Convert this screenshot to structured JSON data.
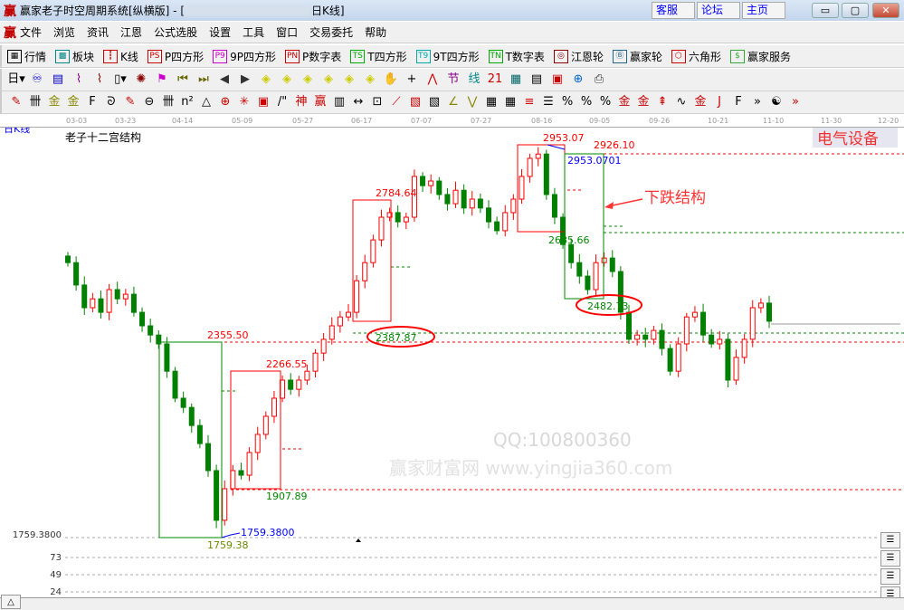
{
  "titlebar": {
    "logo": "赢",
    "title": "赢家老子时空周期系统[纵横版] - [",
    "title_suffix": "日K线]",
    "links": [
      "客服",
      "论坛",
      "主页"
    ],
    "minimize": "▭",
    "maximize": "▢",
    "close": "✕"
  },
  "menu": {
    "logo": "赢",
    "items": [
      "文件",
      "浏览",
      "资讯",
      "江恩",
      "公式选股",
      "设置",
      "工具",
      "窗口",
      "交易委托",
      "帮助"
    ],
    "mdi": [
      "_",
      "❐",
      "✕"
    ]
  },
  "toolbar1": [
    {
      "icon": "quote-table-icon",
      "glyph": "▦",
      "label": "行情",
      "color": "#000"
    },
    {
      "icon": "sector-icon",
      "glyph": "▩",
      "label": "板块",
      "color": "#088"
    },
    {
      "icon": "kline-icon",
      "glyph": "┇",
      "label": "K线",
      "color": "#c00"
    },
    {
      "icon": "ps-icon",
      "glyph": "PS",
      "label": "P四方形",
      "color": "#c00"
    },
    {
      "icon": "p9-icon",
      "glyph": "P9",
      "label": "9P四方形",
      "color": "#c0c"
    },
    {
      "icon": "pn-icon",
      "glyph": "PN",
      "label": "P数字表",
      "color": "#c00"
    },
    {
      "icon": "ts-icon",
      "glyph": "TS",
      "label": "T四方形",
      "color": "#0a0"
    },
    {
      "icon": "t9-icon",
      "glyph": "T9",
      "label": "9T四方形",
      "color": "#0aa"
    },
    {
      "icon": "tn-icon",
      "glyph": "TN",
      "label": "T数字表",
      "color": "#0a0"
    },
    {
      "icon": "gann-wheel-icon",
      "glyph": "◎",
      "label": "江恩轮",
      "color": "#800"
    },
    {
      "icon": "winner-wheel-icon",
      "glyph": "Ⓑ",
      "label": "赢家轮",
      "color": "#268"
    },
    {
      "icon": "hexagon-icon",
      "glyph": "⬡",
      "label": "六角形",
      "color": "#c00"
    },
    {
      "icon": "dollar-icon",
      "glyph": "$",
      "label": "赢家服务",
      "color": "#3a3"
    }
  ],
  "toolbar2": [
    {
      "icon": "period-day-icon",
      "glyph": "日▾",
      "color": "#000"
    },
    {
      "icon": "stock-icon",
      "glyph": "♾",
      "color": "#00c"
    },
    {
      "icon": "notes-icon",
      "glyph": "▤",
      "color": "#00c"
    },
    {
      "icon": "wave3-icon",
      "glyph": "⌇",
      "color": "#808"
    },
    {
      "icon": "wave9-icon",
      "glyph": "⌇",
      "color": "#800"
    },
    {
      "icon": "candle-type-icon",
      "glyph": "▯▾",
      "color": "#000"
    },
    {
      "icon": "chart-style-icon",
      "glyph": "✺",
      "color": "#800"
    },
    {
      "icon": "flag-icon",
      "glyph": "⚑",
      "color": "#c0c"
    },
    {
      "icon": "first-icon",
      "glyph": "⏮",
      "color": "#660"
    },
    {
      "icon": "last-icon",
      "glyph": "⏭",
      "color": "#660"
    },
    {
      "icon": "prev-icon",
      "glyph": "◀",
      "color": "#333"
    },
    {
      "icon": "next-icon",
      "glyph": "▶",
      "color": "#333"
    },
    {
      "icon": "shift-left-icon",
      "glyph": "◈",
      "color": "#cc0"
    },
    {
      "icon": "shift-right-icon",
      "glyph": "◈",
      "color": "#cc0"
    },
    {
      "icon": "expand-h-icon",
      "glyph": "◈",
      "color": "#cc0"
    },
    {
      "icon": "shrink-h-icon",
      "glyph": "◈",
      "color": "#cc0"
    },
    {
      "icon": "zoom-in-icon",
      "glyph": "◈",
      "color": "#cc0"
    },
    {
      "icon": "zoom-out-icon",
      "glyph": "◈",
      "color": "#cc0"
    },
    {
      "icon": "hand-icon",
      "glyph": "✋",
      "color": "#000"
    },
    {
      "icon": "crosshair-icon",
      "glyph": "+",
      "color": "#000"
    },
    {
      "icon": "line-icon",
      "glyph": "⋀",
      "color": "#c00"
    },
    {
      "icon": "festival-icon",
      "glyph": "节",
      "color": "#808"
    },
    {
      "icon": "grid-icon",
      "glyph": "线",
      "color": "#088"
    },
    {
      "icon": "calendar-icon",
      "glyph": "21",
      "color": "#c00"
    },
    {
      "icon": "calculator-icon",
      "glyph": "▦",
      "color": "#066"
    },
    {
      "icon": "document-icon",
      "glyph": "▤",
      "color": "#000"
    },
    {
      "icon": "save-icon",
      "glyph": "▣",
      "color": "#c00"
    },
    {
      "icon": "network-icon",
      "glyph": "⊕",
      "color": "#06c"
    },
    {
      "icon": "print-icon",
      "glyph": "⎙",
      "color": "#333"
    }
  ],
  "toolbar3": [
    {
      "icon": "pen-icon",
      "glyph": "✎"
    },
    {
      "icon": "lines-icon",
      "glyph": "卌"
    },
    {
      "icon": "gold-1-icon",
      "glyph": "金"
    },
    {
      "icon": "gold-2-icon",
      "glyph": "金"
    },
    {
      "icon": "fib-icon",
      "glyph": "F"
    },
    {
      "icon": "spiral-icon",
      "glyph": "ᘐ"
    },
    {
      "icon": "pencil-icon",
      "glyph": "✎"
    },
    {
      "icon": "circle-ruler-icon",
      "glyph": "⊖"
    },
    {
      "icon": "parallel-icon",
      "glyph": "卌"
    },
    {
      "icon": "n2-icon",
      "glyph": "n²"
    },
    {
      "icon": "triangle-icon",
      "glyph": "△"
    },
    {
      "icon": "target-icon",
      "glyph": "⊕"
    },
    {
      "icon": "web-icon",
      "glyph": "✳"
    },
    {
      "icon": "square-target-icon",
      "glyph": "▣"
    },
    {
      "icon": "tick-icon",
      "glyph": "/\""
    },
    {
      "icon": "god-icon",
      "glyph": "神"
    },
    {
      "icon": "winner-icon",
      "glyph": "赢"
    },
    {
      "icon": "ruler-icon",
      "glyph": "▥"
    },
    {
      "icon": "measure-icon",
      "glyph": "↔"
    },
    {
      "icon": "box-icon",
      "glyph": "⊡"
    },
    {
      "icon": "fan-icon",
      "glyph": "⟋"
    },
    {
      "icon": "gann-box-icon",
      "glyph": "▧"
    },
    {
      "icon": "gann-fan-box-icon",
      "glyph": "▧"
    },
    {
      "icon": "angle-icon",
      "glyph": "∠"
    },
    {
      "icon": "zigzag-icon",
      "glyph": "⋁"
    },
    {
      "icon": "grid-box-icon",
      "glyph": "▦"
    },
    {
      "icon": "grid-arrow-icon",
      "glyph": "▦"
    },
    {
      "icon": "channel-icon",
      "glyph": "≡"
    },
    {
      "icon": "bars-icon",
      "glyph": "☰"
    },
    {
      "icon": "percent-fan-icon",
      "glyph": "%"
    },
    {
      "icon": "percent-icon",
      "glyph": "%"
    },
    {
      "icon": "percent-lines-icon",
      "glyph": "%"
    },
    {
      "icon": "gold-circle-icon",
      "glyph": "金"
    },
    {
      "icon": "gold-lines-icon",
      "glyph": "金"
    },
    {
      "icon": "rocket-icon",
      "glyph": "⇞"
    },
    {
      "icon": "sine-icon",
      "glyph": "∿"
    },
    {
      "icon": "gold-red-icon",
      "glyph": "金"
    },
    {
      "icon": "j-angle-icon",
      "glyph": "J"
    },
    {
      "icon": "f-angle-icon",
      "glyph": "F"
    },
    {
      "icon": "more-icon",
      "glyph": "»"
    },
    {
      "icon": "taiji-icon",
      "glyph": "☯"
    },
    {
      "icon": "more-2-icon",
      "glyph": "»"
    }
  ],
  "axis": {
    "period_label": "日K线",
    "dates": [
      "03-03",
      "03-23",
      "04-14",
      "05-09",
      "05-27",
      "06-17",
      "07-07",
      "07-27",
      "08-16",
      "09-05",
      "09-26",
      "10-21",
      "11-10",
      "11-30",
      "12-20"
    ]
  },
  "chart": {
    "indicator": "老子十二宫结构",
    "sector": "电气设备",
    "annotation": "下跌结构",
    "watermark": "QQ:100800360",
    "watermark2": "赢家财富网 www.yingjia360.com",
    "labels": {
      "l2355": "2355.50",
      "l1759": "1759.38",
      "l1759b": "1759.3800",
      "l2266": "2266.55",
      "l1907": "1907.89",
      "l2784": "2784.64",
      "l2387": "2387.87",
      "l2953": "2953.07",
      "l2926": "2926.10",
      "l2953b": "2953.0701",
      "l2685": "2685.66",
      "l2482": "2482.73"
    },
    "y_axis": {
      "price_label": "1759.3800",
      "volume_ticks": [
        "73",
        "49",
        "24"
      ]
    },
    "colors": {
      "up": "#ff0000",
      "down": "#008000",
      "box_red": "#ff0000",
      "box_green": "#008000",
      "blue": "#0000ff"
    }
  },
  "chart_data": {
    "type": "candlestick",
    "closes": [
      2595,
      2527,
      2458,
      2485,
      2444,
      2513,
      2485,
      2499,
      2444,
      2403,
      2375,
      2348,
      2265,
      2183,
      2155,
      2100,
      2045,
      1963,
      1812,
      1908,
      1963,
      1949,
      2018,
      2073,
      2128,
      2183,
      2238,
      2210,
      2238,
      2265,
      2320,
      2362,
      2403,
      2430,
      2444,
      2540,
      2595,
      2664,
      2733,
      2747,
      2719,
      2733,
      2857,
      2829,
      2843,
      2802,
      2774,
      2815,
      2761,
      2788,
      2761,
      2719,
      2692,
      2747,
      2788,
      2857,
      2912,
      2925,
      2802,
      2733,
      2650,
      2595,
      2554,
      2513,
      2595,
      2609,
      2568,
      2444,
      2362,
      2375,
      2362,
      2389,
      2334,
      2265,
      2348,
      2430,
      2444,
      2375,
      2348,
      2362,
      2238,
      2307,
      2362,
      2458,
      2472,
      2417
    ],
    "ylim": [
      1759.38,
      2953.07
    ]
  },
  "bottom": {
    "toggle": "△"
  }
}
